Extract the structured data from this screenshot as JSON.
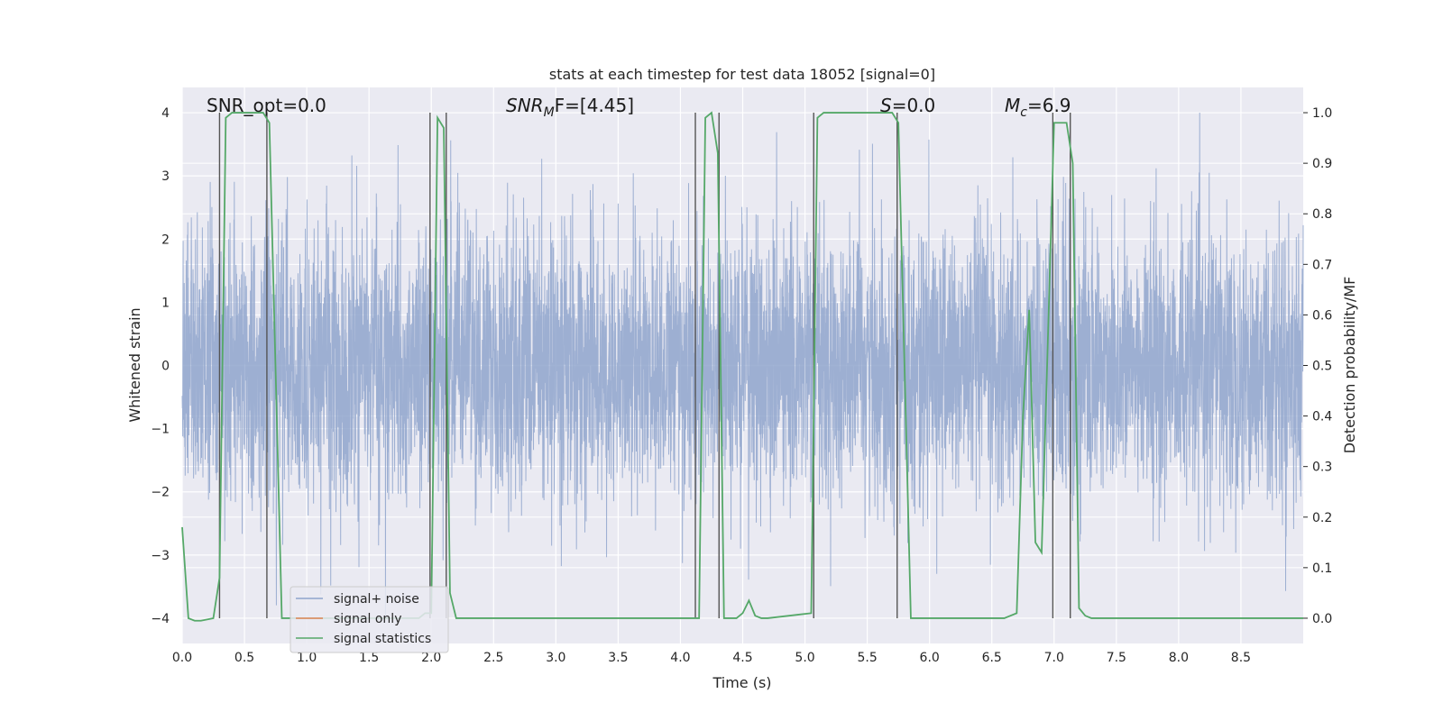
{
  "chart_data": {
    "type": "line",
    "title": "stats at each timestep for test data 18052 [signal=0]",
    "xlabel": "Time (s)",
    "ylabel": "Whitened strain",
    "ylabel_right": "Detection probability/MF",
    "xlim": [
      0,
      9
    ],
    "ylim": [
      -4.4,
      4.4
    ],
    "ylim_right": [
      -0.05,
      1.05
    ],
    "x_ticks": [
      "0.0",
      "0.5",
      "1.0",
      "1.5",
      "2.0",
      "2.5",
      "3.0",
      "3.5",
      "4.0",
      "4.5",
      "5.0",
      "5.5",
      "6.0",
      "6.5",
      "7.0",
      "7.5",
      "8.0",
      "8.5"
    ],
    "y_ticks": [
      "4",
      "3",
      "2",
      "1",
      "0",
      "−1",
      "−2",
      "−3",
      "−4"
    ],
    "y_ticks_right": [
      "1.0",
      "0.9",
      "0.8",
      "0.7",
      "0.6",
      "0.5",
      "0.4",
      "0.3",
      "0.2",
      "0.1",
      "0.0"
    ],
    "grid": true,
    "legend_position": "bottom-left",
    "series": [
      {
        "name": "signal+ noise",
        "color": "#8fa4cc",
        "note": "dense whitened noise, roughly N(0,1), |y| up to ~4"
      },
      {
        "name": "signal only",
        "color": "#dd8452",
        "values": []
      },
      {
        "name": "signal statistics",
        "color": "#55a868",
        "x": [
          0.0,
          0.05,
          0.1,
          0.15,
          0.25,
          0.3,
          0.35,
          0.4,
          0.65,
          0.7,
          0.8,
          0.85,
          1.9,
          1.95,
          2.0,
          2.05,
          2.1,
          2.15,
          2.2,
          2.25,
          4.1,
          4.15,
          4.2,
          4.25,
          4.3,
          4.35,
          4.4,
          4.45,
          4.5,
          4.55,
          4.6,
          4.65,
          4.7,
          5.05,
          5.1,
          5.15,
          5.7,
          5.75,
          5.85,
          5.9,
          6.6,
          6.7,
          6.75,
          6.8,
          6.85,
          6.9,
          6.95,
          7.0,
          7.05,
          7.1,
          7.15,
          7.2,
          7.25,
          7.3,
          9.0
        ],
        "values": [
          0.18,
          0.0,
          -0.005,
          -0.005,
          0.0,
          0.08,
          0.99,
          1.0,
          1.0,
          0.98,
          0.0,
          0.0,
          0.0,
          0.01,
          0.01,
          0.99,
          0.97,
          0.05,
          0.0,
          0.0,
          0.0,
          0.0,
          0.99,
          1.0,
          0.92,
          0.0,
          0.0,
          0.0,
          0.01,
          0.035,
          0.005,
          0.0,
          0.0,
          0.01,
          0.99,
          1.0,
          1.0,
          0.98,
          0.0,
          0.0,
          0.0,
          0.01,
          0.4,
          0.61,
          0.15,
          0.13,
          0.55,
          0.98,
          0.98,
          0.98,
          0.9,
          0.02,
          0.005,
          0.0,
          0.0
        ]
      }
    ],
    "vertical_markers": [
      0.3,
      0.68,
      1.99,
      2.12,
      4.12,
      4.31,
      5.07,
      5.74,
      6.99,
      7.13
    ],
    "annotations": [
      "SNR_opt=0.0",
      "F=[4.45]",
      "=0.0",
      "=6.9"
    ]
  }
}
